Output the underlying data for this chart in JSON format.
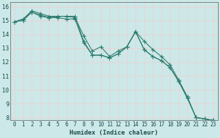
{
  "xlabel": "Humidex (Indice chaleur)",
  "bg_color": "#cce8e8",
  "grid_color": "#f0d0d0",
  "line_color": "#2e7b6e",
  "xlim": [
    -0.5,
    23.5
  ],
  "ylim": [
    7.8,
    16.3
  ],
  "xticks": [
    0,
    1,
    2,
    3,
    4,
    5,
    6,
    7,
    8,
    9,
    10,
    11,
    12,
    13,
    14,
    15,
    16,
    17,
    18,
    19,
    20,
    21,
    22,
    23
  ],
  "yticks": [
    8,
    9,
    10,
    11,
    12,
    13,
    14,
    15,
    16
  ],
  "series": [
    [
      14.9,
      15.1,
      15.7,
      15.5,
      15.3,
      15.3,
      15.3,
      15.2,
      13.9,
      12.8,
      13.1,
      12.4,
      12.8,
      13.1,
      14.2,
      13.5,
      12.9,
      12.4,
      11.8,
      10.7,
      9.5,
      8.0,
      7.9,
      7.8
    ],
    [
      14.9,
      15.1,
      15.6,
      15.4,
      15.2,
      15.3,
      15.3,
      15.3,
      13.5,
      12.5,
      12.5,
      12.3,
      12.6,
      13.1,
      14.2,
      12.9,
      12.4,
      12.1,
      11.6,
      10.6,
      9.4,
      8.0,
      7.9,
      7.8
    ],
    [
      14.9,
      15.0,
      15.6,
      15.3,
      15.2,
      15.2,
      15.1,
      15.1,
      13.4,
      12.5,
      12.5,
      12.3,
      12.6,
      13.1,
      14.2,
      12.9,
      12.4,
      12.1,
      11.6,
      10.6,
      9.4,
      8.0,
      7.9,
      7.8
    ]
  ],
  "marker": "+",
  "markersize": 4,
  "linewidth": 0.8,
  "xlabel_fontsize": 6.5,
  "tick_fontsize": 5.5
}
